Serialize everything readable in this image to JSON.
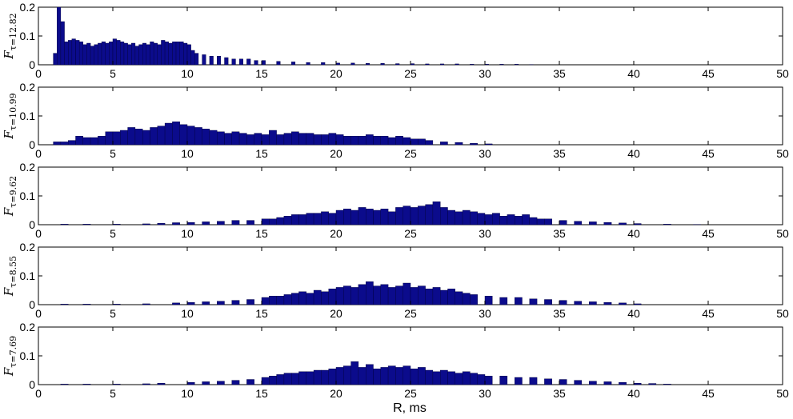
{
  "figure": {
    "xlabel": "R, ms"
  },
  "colors": {
    "bar_fill": "#0b0b8c",
    "bar_edge": "#00003a"
  },
  "chart_data": [
    {
      "type": "bar",
      "panel_label": "F",
      "panel_subscript": "τ=12.82",
      "xlim": [
        0,
        50
      ],
      "ylim": [
        0,
        0.2
      ],
      "xticks": [
        "0",
        "5",
        "10",
        "15",
        "20",
        "25",
        "30",
        "35",
        "40",
        "45",
        "50"
      ],
      "yticks": [
        "0",
        "0.1",
        "0.2"
      ],
      "bin_width": 0.25,
      "x": [
        1.0,
        1.25,
        1.5,
        1.75,
        2.0,
        2.25,
        2.5,
        2.75,
        3.0,
        3.25,
        3.5,
        3.75,
        4.0,
        4.25,
        4.5,
        4.75,
        5.0,
        5.25,
        5.5,
        5.75,
        6.0,
        6.25,
        6.5,
        6.75,
        7.0,
        7.25,
        7.5,
        7.75,
        8.0,
        8.25,
        8.5,
        8.75,
        9.0,
        9.25,
        9.5,
        9.75,
        10.0,
        10.25,
        10.5,
        11.0,
        11.5,
        12.0,
        12.5,
        13.0,
        13.5,
        14.0,
        14.5,
        15.0,
        16.0,
        17.0,
        18.0,
        19.0,
        20.0,
        21.0,
        22.0,
        23.0,
        24.0,
        25.0,
        26.0,
        27.0,
        28.0,
        29.0,
        30.0,
        31.0,
        32.0,
        33.0
      ],
      "values": [
        0.04,
        0.2,
        0.15,
        0.08,
        0.085,
        0.09,
        0.085,
        0.08,
        0.07,
        0.075,
        0.065,
        0.07,
        0.075,
        0.08,
        0.075,
        0.08,
        0.09,
        0.085,
        0.08,
        0.075,
        0.07,
        0.075,
        0.065,
        0.07,
        0.075,
        0.07,
        0.08,
        0.075,
        0.07,
        0.085,
        0.08,
        0.075,
        0.08,
        0.08,
        0.08,
        0.075,
        0.07,
        0.05,
        0.04,
        0.035,
        0.03,
        0.03,
        0.025,
        0.02,
        0.02,
        0.02,
        0.015,
        0.015,
        0.012,
        0.01,
        0.008,
        0.008,
        0.006,
        0.006,
        0.005,
        0.005,
        0.004,
        0.004,
        0.003,
        0.003,
        0.003,
        0.002,
        0.002,
        0.002,
        0.002,
        0.001
      ]
    },
    {
      "type": "bar",
      "panel_label": "F",
      "panel_subscript": "τ=10.99",
      "xlim": [
        0,
        50
      ],
      "ylim": [
        0,
        0.2
      ],
      "xticks": [
        "0",
        "5",
        "10",
        "15",
        "20",
        "25",
        "30",
        "35",
        "40",
        "45",
        "50"
      ],
      "yticks": [
        "0",
        "0.1",
        "0.2"
      ],
      "bin_width": 0.5,
      "x": [
        1.0,
        1.5,
        2.0,
        2.5,
        3.0,
        3.5,
        4.0,
        4.5,
        5.0,
        5.5,
        6.0,
        6.5,
        7.0,
        7.5,
        8.0,
        8.5,
        9.0,
        9.5,
        10.0,
        10.5,
        11.0,
        11.5,
        12.0,
        12.5,
        13.0,
        13.5,
        14.0,
        14.5,
        15.0,
        15.5,
        16.0,
        16.5,
        17.0,
        17.5,
        18.0,
        18.5,
        19.0,
        19.5,
        20.0,
        20.5,
        21.0,
        21.5,
        22.0,
        22.5,
        23.0,
        23.5,
        24.0,
        24.5,
        25.0,
        25.5,
        26.0,
        27.0,
        28.0,
        29.0,
        30.0
      ],
      "values": [
        0.01,
        0.01,
        0.015,
        0.03,
        0.025,
        0.025,
        0.03,
        0.045,
        0.045,
        0.05,
        0.06,
        0.055,
        0.05,
        0.06,
        0.065,
        0.075,
        0.08,
        0.07,
        0.065,
        0.06,
        0.055,
        0.05,
        0.045,
        0.04,
        0.045,
        0.04,
        0.035,
        0.04,
        0.035,
        0.05,
        0.035,
        0.04,
        0.045,
        0.04,
        0.04,
        0.035,
        0.035,
        0.04,
        0.035,
        0.03,
        0.03,
        0.03,
        0.035,
        0.03,
        0.03,
        0.025,
        0.03,
        0.025,
        0.02,
        0.02,
        0.015,
        0.01,
        0.008,
        0.005,
        0.003
      ]
    },
    {
      "type": "bar",
      "panel_label": "F",
      "panel_subscript": "τ=9.62",
      "xlim": [
        0,
        50
      ],
      "ylim": [
        0,
        0.2
      ],
      "xticks": [
        "0",
        "5",
        "10",
        "15",
        "20",
        "25",
        "30",
        "35",
        "40",
        "45",
        "50"
      ],
      "yticks": [
        "0",
        "0.1",
        "0.2"
      ],
      "bin_width": 0.5,
      "x": [
        1.5,
        3.0,
        5.0,
        7.0,
        8.0,
        9.0,
        10.0,
        11.0,
        12.0,
        13.0,
        14.0,
        15.0,
        15.5,
        16.0,
        16.5,
        17.0,
        17.5,
        18.0,
        18.5,
        19.0,
        19.5,
        20.0,
        20.5,
        21.0,
        21.5,
        22.0,
        22.5,
        23.0,
        23.5,
        24.0,
        24.5,
        25.0,
        25.5,
        26.0,
        26.5,
        27.0,
        27.5,
        28.0,
        28.5,
        29.0,
        29.5,
        30.0,
        30.5,
        31.0,
        31.5,
        32.0,
        32.5,
        33.0,
        33.5,
        34.0,
        35.0,
        36.0,
        37.0,
        38.0,
        39.0,
        40.0,
        42.0,
        44.0
      ],
      "values": [
        0.002,
        0.002,
        0.002,
        0.003,
        0.005,
        0.007,
        0.008,
        0.01,
        0.012,
        0.015,
        0.015,
        0.02,
        0.02,
        0.025,
        0.03,
        0.035,
        0.035,
        0.04,
        0.04,
        0.045,
        0.04,
        0.05,
        0.055,
        0.05,
        0.06,
        0.055,
        0.05,
        0.055,
        0.045,
        0.06,
        0.065,
        0.06,
        0.065,
        0.07,
        0.08,
        0.06,
        0.05,
        0.045,
        0.05,
        0.045,
        0.04,
        0.035,
        0.04,
        0.03,
        0.035,
        0.03,
        0.035,
        0.025,
        0.02,
        0.02,
        0.015,
        0.012,
        0.01,
        0.008,
        0.006,
        0.004,
        0.002,
        0.001
      ]
    },
    {
      "type": "bar",
      "panel_label": "F",
      "panel_subscript": "τ=8.55",
      "xlim": [
        0,
        50
      ],
      "ylim": [
        0,
        0.2
      ],
      "xticks": [
        "0",
        "5",
        "10",
        "15",
        "20",
        "25",
        "30",
        "35",
        "40",
        "45",
        "50"
      ],
      "yticks": [
        "0",
        "0.1",
        "0.2"
      ],
      "bin_width": 0.5,
      "x": [
        1.5,
        3.0,
        5.0,
        7.0,
        9.0,
        10.0,
        11.0,
        12.0,
        13.0,
        14.0,
        15.0,
        15.5,
        16.0,
        16.5,
        17.0,
        17.5,
        18.0,
        18.5,
        19.0,
        19.5,
        20.0,
        20.5,
        21.0,
        21.5,
        22.0,
        22.5,
        23.0,
        23.5,
        24.0,
        24.5,
        25.0,
        25.5,
        26.0,
        26.5,
        27.0,
        27.5,
        28.0,
        28.5,
        29.0,
        30.0,
        31.0,
        32.0,
        33.0,
        34.0,
        35.0,
        36.0,
        37.0,
        38.0,
        39.0,
        40.0
      ],
      "values": [
        0.002,
        0.002,
        0.002,
        0.003,
        0.006,
        0.008,
        0.01,
        0.012,
        0.015,
        0.018,
        0.025,
        0.03,
        0.03,
        0.035,
        0.04,
        0.045,
        0.04,
        0.05,
        0.045,
        0.055,
        0.06,
        0.065,
        0.06,
        0.07,
        0.08,
        0.065,
        0.07,
        0.06,
        0.065,
        0.075,
        0.06,
        0.065,
        0.055,
        0.06,
        0.05,
        0.055,
        0.045,
        0.04,
        0.035,
        0.03,
        0.025,
        0.025,
        0.02,
        0.018,
        0.015,
        0.012,
        0.01,
        0.008,
        0.006,
        0.003
      ]
    },
    {
      "type": "bar",
      "panel_label": "F",
      "panel_subscript": "τ=7.69",
      "xlim": [
        0,
        50
      ],
      "ylim": [
        0,
        0.2
      ],
      "xticks": [
        "0",
        "5",
        "10",
        "15",
        "20",
        "25",
        "30",
        "35",
        "40",
        "45",
        "50"
      ],
      "yticks": [
        "0",
        "0.1",
        "0.2"
      ],
      "bin_width": 0.5,
      "x": [
        1.5,
        3.0,
        5.0,
        7.0,
        8.0,
        10.0,
        11.0,
        12.0,
        13.0,
        14.0,
        15.0,
        15.5,
        16.0,
        16.5,
        17.0,
        17.5,
        18.0,
        18.5,
        19.0,
        19.5,
        20.0,
        20.5,
        21.0,
        21.5,
        22.0,
        22.5,
        23.0,
        23.5,
        24.0,
        24.5,
        25.0,
        25.5,
        26.0,
        26.5,
        27.0,
        27.5,
        28.0,
        28.5,
        29.0,
        29.5,
        30.0,
        31.0,
        32.0,
        33.0,
        34.0,
        35.0,
        36.0,
        37.0,
        38.0,
        39.0,
        40.0,
        41.0,
        42.0
      ],
      "values": [
        0.002,
        0.002,
        0.002,
        0.003,
        0.005,
        0.008,
        0.01,
        0.012,
        0.015,
        0.018,
        0.025,
        0.03,
        0.035,
        0.04,
        0.04,
        0.045,
        0.045,
        0.05,
        0.05,
        0.055,
        0.06,
        0.065,
        0.08,
        0.06,
        0.07,
        0.055,
        0.06,
        0.065,
        0.06,
        0.065,
        0.055,
        0.06,
        0.05,
        0.045,
        0.05,
        0.045,
        0.04,
        0.045,
        0.04,
        0.035,
        0.03,
        0.03,
        0.025,
        0.025,
        0.02,
        0.018,
        0.015,
        0.012,
        0.01,
        0.008,
        0.005,
        0.004,
        0.002
      ]
    }
  ]
}
